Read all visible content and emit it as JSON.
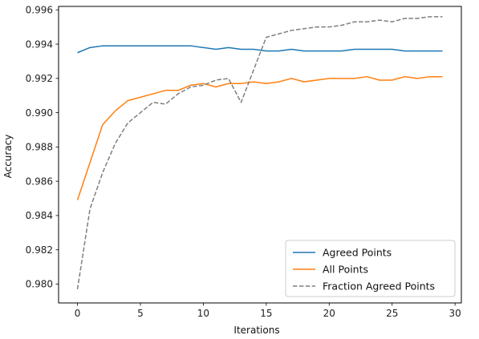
{
  "chart_data": {
    "type": "line",
    "title": "",
    "xlabel": "Iterations",
    "ylabel": "Accuracy",
    "xlim": [
      -1.5,
      30.5
    ],
    "ylim": [
      0.9789,
      0.9962
    ],
    "xticks": [
      0,
      5,
      10,
      15,
      20,
      25,
      30
    ],
    "yticks": [
      0.98,
      0.982,
      0.984,
      0.986,
      0.988,
      0.99,
      0.992,
      0.994,
      0.996
    ],
    "ytick_labels": [
      "0.980",
      "0.982",
      "0.984",
      "0.986",
      "0.988",
      "0.990",
      "0.992",
      "0.994",
      "0.996"
    ],
    "grid": false,
    "legend_position": "lower-right",
    "x": [
      0,
      1,
      2,
      3,
      4,
      5,
      6,
      7,
      8,
      9,
      10,
      11,
      12,
      13,
      14,
      15,
      16,
      17,
      18,
      19,
      20,
      21,
      22,
      23,
      24,
      25,
      26,
      27,
      28,
      29
    ],
    "series": [
      {
        "name": "Agreed Points",
        "color": "#1f77b4",
        "dash": "solid",
        "values": [
          0.9935,
          0.9938,
          0.9939,
          0.9939,
          0.9939,
          0.9939,
          0.9939,
          0.9939,
          0.9939,
          0.9939,
          0.9938,
          0.9937,
          0.9938,
          0.9937,
          0.9937,
          0.9936,
          0.9936,
          0.9937,
          0.9936,
          0.9936,
          0.9936,
          0.9936,
          0.9937,
          0.9937,
          0.9937,
          0.9937,
          0.9936,
          0.9936,
          0.9936,
          0.9936
        ]
      },
      {
        "name": "All Points",
        "color": "#ff7f0e",
        "dash": "solid",
        "values": [
          0.9849,
          0.9871,
          0.9893,
          0.9901,
          0.9907,
          0.9909,
          0.9911,
          0.9913,
          0.9913,
          0.9916,
          0.9917,
          0.9915,
          0.9917,
          0.9917,
          0.9918,
          0.9917,
          0.9918,
          0.992,
          0.9918,
          0.9919,
          0.992,
          0.992,
          0.992,
          0.9921,
          0.9919,
          0.9919,
          0.9921,
          0.992,
          0.9921,
          0.9921
        ]
      },
      {
        "name": "Fraction Agreed Points",
        "color": "#7f7f7f",
        "dash": "dashed",
        "values": [
          0.9797,
          0.9844,
          0.9865,
          0.9882,
          0.9894,
          0.99,
          0.9906,
          0.9905,
          0.9911,
          0.9915,
          0.9916,
          0.9919,
          0.992,
          0.9906,
          0.9925,
          0.9944,
          0.9946,
          0.9948,
          0.9949,
          0.995,
          0.995,
          0.9951,
          0.9953,
          0.9953,
          0.9954,
          0.9953,
          0.9955,
          0.9955,
          0.9956,
          0.9956
        ]
      }
    ]
  }
}
